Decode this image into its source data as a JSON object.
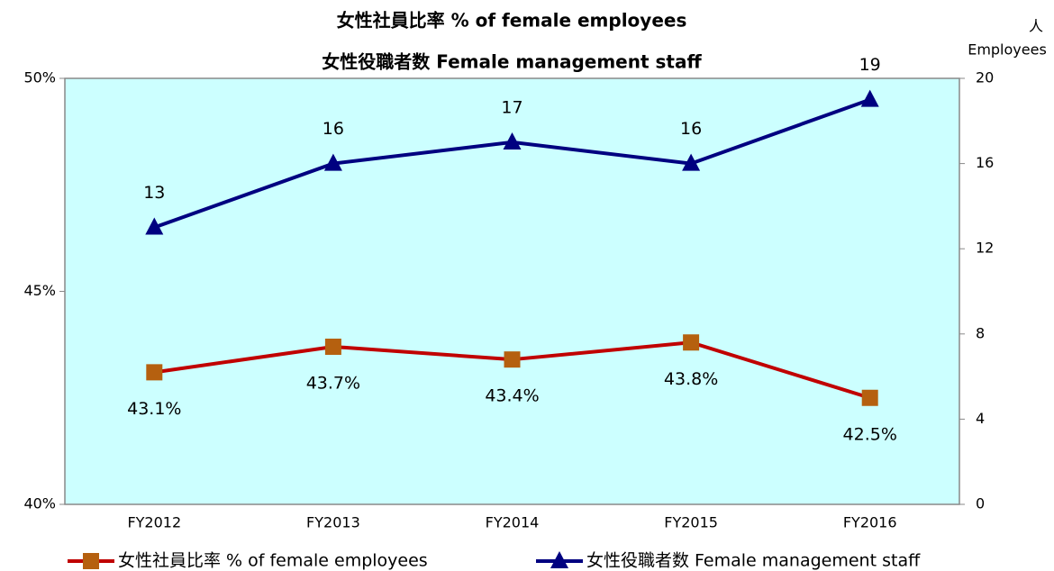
{
  "chart_data": {
    "type": "line",
    "title": "女性社員比率 % of female employees",
    "subtitle": "女性役職者数 Female management staff",
    "y2label": [
      "人",
      "Employees"
    ],
    "categories": [
      "FY2012",
      "FY2013",
      "FY2014",
      "FY2015",
      "FY2016"
    ],
    "series": [
      {
        "name": "女性社員比率  % of female employees",
        "color": "#c00000",
        "marker": "square",
        "marker_color": "#b5600f",
        "axis": "y",
        "values": [
          43.1,
          43.7,
          43.4,
          43.8,
          42.5
        ],
        "value_labels": [
          "43.1%",
          "43.7%",
          "43.4%",
          "43.8%",
          "42.5%"
        ]
      },
      {
        "name": "女性役職者数  Female management staff",
        "color": "#000080",
        "marker": "triangle",
        "marker_color": "#000080",
        "axis": "y2",
        "values": [
          13,
          16,
          17,
          16,
          19
        ]
      }
    ],
    "ylim": [
      40,
      50
    ],
    "yticks": [
      {
        "value": 40,
        "label": "40%"
      },
      {
        "value": 45,
        "label": "45%"
      },
      {
        "value": 50,
        "label": "50%"
      }
    ],
    "y2lim": [
      0,
      20
    ],
    "y2ticks": [
      0,
      4,
      8,
      12,
      16,
      20
    ],
    "legend": "bottom",
    "plot_background": "#ccffff"
  }
}
